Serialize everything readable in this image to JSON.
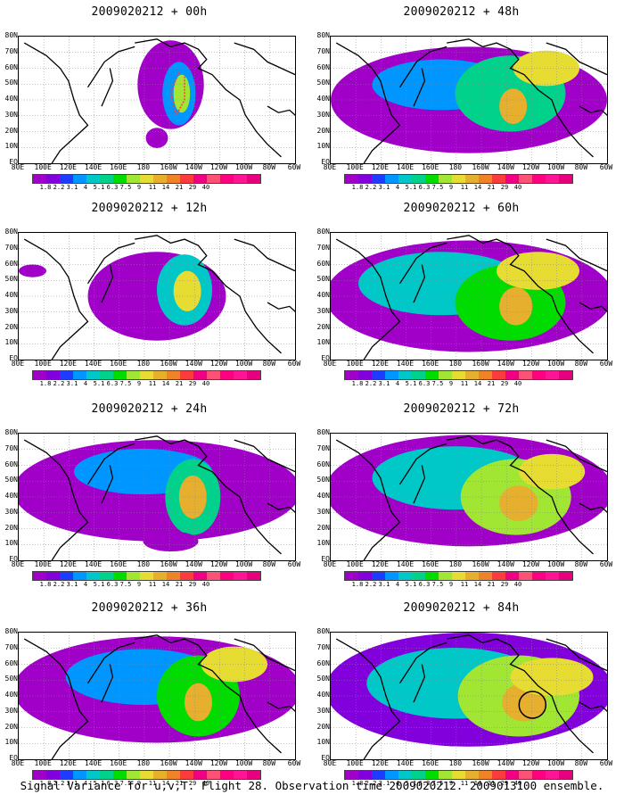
{
  "panels": [
    {
      "title": "2009020212 + 00h"
    },
    {
      "title": "2009020212 + 48h"
    },
    {
      "title": "2009020212 + 12h"
    },
    {
      "title": "2009020212 + 60h"
    },
    {
      "title": "2009020212 + 24h"
    },
    {
      "title": "2009020212 + 72h"
    },
    {
      "title": "2009020212 + 36h"
    },
    {
      "title": "2009020212 + 84h"
    }
  ],
  "lat_labels": [
    "80N",
    "70N",
    "60N",
    "50N",
    "40N",
    "30N",
    "20N",
    "10N",
    "EQ"
  ],
  "lon_labels": [
    "80E",
    "100E",
    "120E",
    "140E",
    "160E",
    "180",
    "160W",
    "140W",
    "120W",
    "100W",
    "80W",
    "60W"
  ],
  "colorbar": {
    "labels": [
      "1.8",
      "2.2",
      "3.1",
      "4",
      "5.1",
      "6.3",
      "7.5",
      "9",
      "11",
      "14",
      "21",
      "29",
      "40"
    ],
    "colors": [
      "#a000c8",
      "#8200dc",
      "#1e3cff",
      "#0096ff",
      "#00c8c8",
      "#00d28c",
      "#00dc00",
      "#a0e632",
      "#e6dc32",
      "#e6af2d",
      "#f08228",
      "#fa3c3c",
      "#f00082"
    ]
  },
  "footer": "Signal Variance for u,v,T. Flight 28. Observation time 2009020212. 2009013100 ensemble."
}
